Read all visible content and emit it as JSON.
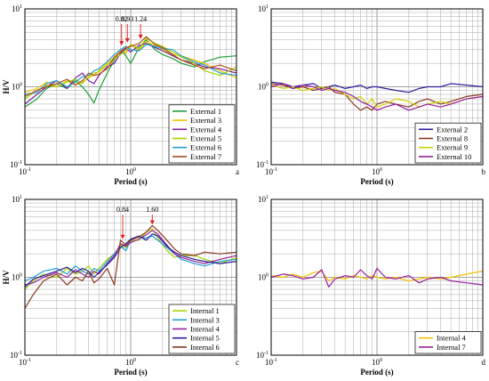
{
  "chart_data": [
    {
      "type": "line",
      "panel_letter": "a",
      "xscale": "log",
      "yscale": "log",
      "xlim": [
        0.1,
        10
      ],
      "ylim": [
        0.1,
        10
      ],
      "xlabel": "Period (s)",
      "ylabel": "H/V",
      "x_ticks": [
        "10^-1",
        "10^0"
      ],
      "y_ticks": [
        "10^-1",
        "10^0",
        "10^1"
      ],
      "grid": true,
      "legend_position": "bottom-right",
      "annotations": [
        {
          "text": "0.82",
          "x": 0.82,
          "y": 3.3
        },
        {
          "text": "0.93",
          "x": 0.93,
          "y": 3.6
        },
        {
          "text": "1.24",
          "x": 1.24,
          "y": 4.0
        }
      ],
      "series": [
        {
          "name": "External 1",
          "color": "#1e9e3a",
          "x": [
            0.1,
            0.13,
            0.16,
            0.2,
            0.25,
            0.3,
            0.35,
            0.4,
            0.45,
            0.5,
            0.6,
            0.7,
            0.8,
            0.9,
            1.0,
            1.2,
            1.4,
            1.7,
            2,
            2.5,
            3,
            4,
            5,
            7,
            10
          ],
          "y": [
            0.55,
            0.7,
            0.95,
            1.1,
            0.95,
            1.2,
            1.0,
            0.8,
            0.62,
            0.9,
            1.5,
            2.2,
            3.0,
            2.5,
            2.0,
            3.2,
            4.0,
            3.0,
            2.6,
            2.3,
            2.0,
            1.8,
            2.1,
            2.4,
            2.5
          ]
        },
        {
          "name": "External 3",
          "color": "#f2c200",
          "x": [
            0.1,
            0.13,
            0.16,
            0.2,
            0.25,
            0.3,
            0.35,
            0.4,
            0.45,
            0.5,
            0.6,
            0.7,
            0.8,
            0.9,
            1.0,
            1.2,
            1.4,
            1.7,
            2,
            2.5,
            3,
            4,
            5,
            7,
            10
          ],
          "y": [
            0.85,
            0.95,
            1.15,
            1.0,
            1.2,
            1.05,
            1.15,
            1.3,
            1.4,
            1.6,
            2.0,
            2.4,
            2.9,
            2.7,
            3.4,
            3.0,
            3.8,
            3.4,
            3.0,
            2.6,
            2.5,
            2.2,
            2.0,
            1.6,
            1.3
          ]
        },
        {
          "name": "External 4",
          "color": "#7a1f9e",
          "x": [
            0.1,
            0.13,
            0.16,
            0.2,
            0.25,
            0.3,
            0.35,
            0.4,
            0.45,
            0.5,
            0.6,
            0.7,
            0.8,
            0.9,
            1.0,
            1.2,
            1.4,
            1.7,
            2,
            2.5,
            3,
            4,
            5,
            7,
            10
          ],
          "y": [
            0.6,
            0.8,
            1.0,
            1.2,
            0.95,
            1.3,
            1.5,
            1.2,
            1.1,
            1.4,
            1.8,
            2.0,
            2.7,
            3.1,
            2.8,
            3.4,
            3.6,
            3.2,
            2.9,
            2.5,
            2.2,
            2.0,
            1.8,
            1.7,
            1.5
          ]
        },
        {
          "name": "External 5",
          "color": "#a5d400",
          "x": [
            0.1,
            0.13,
            0.16,
            0.2,
            0.25,
            0.3,
            0.35,
            0.4,
            0.45,
            0.5,
            0.6,
            0.7,
            0.8,
            0.9,
            1.0,
            1.2,
            1.4,
            1.7,
            2,
            2.5,
            3,
            4,
            5,
            7,
            10
          ],
          "y": [
            0.7,
            0.9,
            1.05,
            1.0,
            1.15,
            1.25,
            1.1,
            1.35,
            1.5,
            1.55,
            1.9,
            2.3,
            2.6,
            2.9,
            3.5,
            3.1,
            4.2,
            3.6,
            3.3,
            2.8,
            2.4,
            2.0,
            1.6,
            1.4,
            1.8
          ]
        },
        {
          "name": "External 6",
          "color": "#1f9fd0",
          "x": [
            0.1,
            0.13,
            0.16,
            0.2,
            0.25,
            0.3,
            0.35,
            0.4,
            0.45,
            0.5,
            0.6,
            0.7,
            0.8,
            0.9,
            1.0,
            1.2,
            1.4,
            1.7,
            2,
            2.5,
            3,
            4,
            5,
            7,
            10
          ],
          "y": [
            0.8,
            0.85,
            1.1,
            1.2,
            1.0,
            1.15,
            1.35,
            1.4,
            1.6,
            1.7,
            2.1,
            2.6,
            3.0,
            3.3,
            3.0,
            2.9,
            3.5,
            3.3,
            3.1,
            3.0,
            2.5,
            2.1,
            1.9,
            1.5,
            1.4
          ]
        },
        {
          "name": "External 7",
          "color": "#b24a1e",
          "x": [
            0.1,
            0.13,
            0.16,
            0.2,
            0.25,
            0.3,
            0.35,
            0.4,
            0.45,
            0.5,
            0.6,
            0.7,
            0.8,
            0.9,
            1.0,
            1.2,
            1.4,
            1.7,
            2,
            2.5,
            3,
            4,
            5,
            7,
            10
          ],
          "y": [
            0.75,
            0.9,
            1.0,
            1.1,
            1.25,
            1.05,
            1.2,
            1.5,
            1.4,
            1.45,
            1.7,
            2.4,
            2.8,
            3.2,
            3.3,
            3.6,
            4.4,
            3.5,
            3.2,
            2.6,
            2.2,
            1.9,
            1.7,
            1.9,
            1.6
          ]
        }
      ]
    },
    {
      "type": "line",
      "panel_letter": "b",
      "xscale": "log",
      "yscale": "log",
      "xlim": [
        0.1,
        10
      ],
      "ylim": [
        0.1,
        10
      ],
      "xlabel": "Period (s)",
      "ylabel": "",
      "x_ticks": [
        "10^-1",
        "10^0"
      ],
      "y_ticks": [
        "10^-1",
        "10^0",
        "10^1"
      ],
      "grid": true,
      "legend_position": "bottom-right",
      "series": [
        {
          "name": "External 2",
          "color": "#2b1f9a",
          "x": [
            0.1,
            0.13,
            0.16,
            0.2,
            0.25,
            0.3,
            0.35,
            0.4,
            0.5,
            0.6,
            0.7,
            0.8,
            0.9,
            1.0,
            1.2,
            1.5,
            2,
            2.5,
            3,
            4,
            5,
            7,
            10
          ],
          "y": [
            1.15,
            1.1,
            1.0,
            1.05,
            1.1,
            0.95,
            1.0,
            1.05,
            0.95,
            1.0,
            1.05,
            0.95,
            1.0,
            1.0,
            0.95,
            0.9,
            0.85,
            0.95,
            1.0,
            1.0,
            1.1,
            1.05,
            1.0
          ]
        },
        {
          "name": "External 8",
          "color": "#8a3a1e",
          "x": [
            0.1,
            0.13,
            0.16,
            0.2,
            0.25,
            0.3,
            0.35,
            0.4,
            0.5,
            0.6,
            0.7,
            0.8,
            0.9,
            1.0,
            1.2,
            1.5,
            2,
            2.5,
            3,
            4,
            5,
            7,
            10
          ],
          "y": [
            1.1,
            1.05,
            0.95,
            1.0,
            0.9,
            0.95,
            1.0,
            0.85,
            0.8,
            0.6,
            0.5,
            0.55,
            0.5,
            0.6,
            0.65,
            0.6,
            0.55,
            0.65,
            0.7,
            0.6,
            0.65,
            0.75,
            0.8
          ]
        },
        {
          "name": "External 9",
          "color": "#cfd400",
          "x": [
            0.1,
            0.13,
            0.16,
            0.2,
            0.25,
            0.3,
            0.35,
            0.4,
            0.5,
            0.6,
            0.7,
            0.8,
            0.9,
            1.0,
            1.2,
            1.5,
            2,
            2.5,
            3,
            4,
            5,
            7,
            10
          ],
          "y": [
            1.05,
            0.95,
            1.0,
            0.9,
            0.95,
            1.0,
            0.9,
            0.95,
            0.8,
            0.7,
            0.75,
            0.6,
            0.7,
            0.55,
            0.6,
            0.7,
            0.65,
            0.55,
            0.6,
            0.65,
            0.6,
            0.7,
            0.75
          ]
        },
        {
          "name": "External 10",
          "color": "#9a1fa0",
          "x": [
            0.1,
            0.13,
            0.16,
            0.2,
            0.25,
            0.3,
            0.35,
            0.4,
            0.5,
            0.6,
            0.7,
            0.8,
            0.9,
            1.0,
            1.2,
            1.5,
            2,
            2.5,
            3,
            4,
            5,
            7,
            10
          ],
          "y": [
            1.0,
            1.1,
            0.95,
            1.05,
            1.0,
            0.9,
            0.95,
            0.9,
            0.85,
            0.75,
            0.65,
            0.6,
            0.55,
            0.5,
            0.55,
            0.6,
            0.5,
            0.55,
            0.6,
            0.55,
            0.6,
            0.7,
            0.75
          ]
        }
      ]
    },
    {
      "type": "line",
      "panel_letter": "c",
      "xscale": "log",
      "yscale": "log",
      "xlim": [
        0.1,
        10
      ],
      "ylim": [
        0.1,
        10
      ],
      "xlabel": "Period (s)",
      "ylabel": "H/V",
      "x_ticks": [
        "10^-1",
        "10^0"
      ],
      "y_ticks": [
        "10^-1",
        "10^0",
        "10^1"
      ],
      "grid": true,
      "legend_position": "bottom-right",
      "annotations": [
        {
          "text": "0.84",
          "x": 0.84,
          "y": 3.0
        },
        {
          "text": "1.60",
          "x": 1.6,
          "y": 4.6
        }
      ],
      "series": [
        {
          "name": "Internal 1",
          "color": "#a5d400",
          "x": [
            0.1,
            0.12,
            0.15,
            0.2,
            0.25,
            0.3,
            0.35,
            0.4,
            0.45,
            0.5,
            0.6,
            0.7,
            0.8,
            0.9,
            1.0,
            1.2,
            1.4,
            1.6,
            1.8,
            2.2,
            2.6,
            3,
            4,
            5,
            7,
            10
          ],
          "y": [
            0.7,
            0.9,
            1.1,
            1.0,
            1.3,
            1.1,
            1.2,
            1.4,
            1.1,
            1.3,
            1.7,
            2.0,
            2.6,
            2.4,
            2.9,
            3.0,
            3.8,
            4.2,
            3.2,
            2.2,
            1.8,
            1.9,
            1.9,
            1.7,
            1.5,
            1.8
          ]
        },
        {
          "name": "Internal 3",
          "color": "#1f9fd0",
          "x": [
            0.1,
            0.12,
            0.15,
            0.2,
            0.25,
            0.3,
            0.35,
            0.4,
            0.45,
            0.5,
            0.6,
            0.7,
            0.8,
            0.9,
            1.0,
            1.2,
            1.4,
            1.6,
            1.8,
            2.2,
            2.6,
            3,
            4,
            5,
            7,
            10
          ],
          "y": [
            0.9,
            1.0,
            1.2,
            1.3,
            1.1,
            1.4,
            1.2,
            1.1,
            1.3,
            1.2,
            1.6,
            2.0,
            2.5,
            2.2,
            3.0,
            3.3,
            3.2,
            3.4,
            3.0,
            2.4,
            2.0,
            1.7,
            1.5,
            1.4,
            1.6,
            1.7
          ]
        },
        {
          "name": "Internal 4",
          "color": "#9a1fa0",
          "x": [
            0.1,
            0.12,
            0.15,
            0.2,
            0.25,
            0.3,
            0.35,
            0.4,
            0.45,
            0.5,
            0.6,
            0.7,
            0.8,
            0.9,
            1.0,
            1.2,
            1.4,
            1.6,
            1.8,
            2.2,
            2.6,
            3,
            4,
            5,
            7,
            10
          ],
          "y": [
            0.8,
            0.85,
            1.0,
            1.15,
            1.0,
            1.25,
            1.1,
            1.0,
            1.2,
            1.1,
            1.5,
            1.9,
            2.7,
            2.5,
            2.8,
            3.1,
            3.5,
            4.0,
            3.6,
            2.6,
            2.0,
            1.8,
            1.6,
            1.5,
            1.7,
            1.9
          ]
        },
        {
          "name": "Internal 5",
          "color": "#2b1f9a",
          "x": [
            0.1,
            0.12,
            0.15,
            0.2,
            0.25,
            0.3,
            0.35,
            0.4,
            0.45,
            0.5,
            0.6,
            0.7,
            0.8,
            0.9,
            1.0,
            1.2,
            1.4,
            1.6,
            1.8,
            2.2,
            2.6,
            3,
            4,
            5,
            7,
            10
          ],
          "y": [
            0.75,
            0.95,
            1.05,
            1.2,
            1.35,
            1.15,
            1.3,
            1.2,
            1.0,
            1.15,
            1.45,
            1.8,
            2.4,
            2.7,
            3.1,
            3.4,
            3.0,
            3.6,
            3.4,
            2.5,
            2.1,
            1.9,
            1.7,
            1.6,
            1.5,
            1.6
          ]
        },
        {
          "name": "Internal 6",
          "color": "#8a3a1e",
          "x": [
            0.1,
            0.12,
            0.15,
            0.2,
            0.25,
            0.3,
            0.35,
            0.4,
            0.45,
            0.5,
            0.6,
            0.7,
            0.8,
            0.9,
            1.0,
            1.2,
            1.4,
            1.6,
            1.8,
            2.2,
            2.6,
            3,
            4,
            5,
            7,
            10
          ],
          "y": [
            0.4,
            0.6,
            0.9,
            1.1,
            0.8,
            1.0,
            0.9,
            1.2,
            0.85,
            0.95,
            1.3,
            0.8,
            3.0,
            2.6,
            3.0,
            3.3,
            3.8,
            4.6,
            4.0,
            3.0,
            2.3,
            2.0,
            1.9,
            2.1,
            2.0,
            2.1
          ]
        }
      ]
    },
    {
      "type": "line",
      "panel_letter": "d",
      "xscale": "log",
      "yscale": "log",
      "xlim": [
        0.1,
        10
      ],
      "ylim": [
        0.1,
        10
      ],
      "xlabel": "Period (s)",
      "ylabel": "",
      "x_ticks": [
        "10^-1",
        "10^0"
      ],
      "y_ticks": [
        "10^-1",
        "10^0",
        "10^1"
      ],
      "grid": true,
      "legend_position": "bottom-right",
      "series": [
        {
          "name": "Internal 4",
          "color": "#f2c200",
          "x": [
            0.1,
            0.13,
            0.16,
            0.2,
            0.25,
            0.3,
            0.35,
            0.4,
            0.5,
            0.6,
            0.7,
            0.8,
            0.9,
            1.0,
            1.2,
            1.5,
            2,
            2.5,
            3,
            4,
            5,
            7,
            10
          ],
          "y": [
            1.05,
            1.0,
            1.1,
            1.0,
            1.15,
            1.2,
            0.9,
            1.0,
            0.95,
            1.05,
            1.0,
            0.95,
            1.05,
            1.0,
            0.95,
            1.0,
            0.9,
            0.95,
            1.0,
            0.95,
            1.0,
            1.1,
            1.2
          ]
        },
        {
          "name": "Internal 7",
          "color": "#9a1fa0",
          "x": [
            0.1,
            0.13,
            0.16,
            0.2,
            0.25,
            0.3,
            0.35,
            0.4,
            0.5,
            0.6,
            0.7,
            0.8,
            0.9,
            1.0,
            1.2,
            1.5,
            2,
            2.5,
            3,
            4,
            5,
            7,
            10
          ],
          "y": [
            1.0,
            1.1,
            1.05,
            0.95,
            1.0,
            1.25,
            0.75,
            0.95,
            1.05,
            1.0,
            1.25,
            1.05,
            0.95,
            1.3,
            1.0,
            0.95,
            1.05,
            0.85,
            0.95,
            1.0,
            0.9,
            0.85,
            0.8
          ]
        }
      ]
    }
  ]
}
